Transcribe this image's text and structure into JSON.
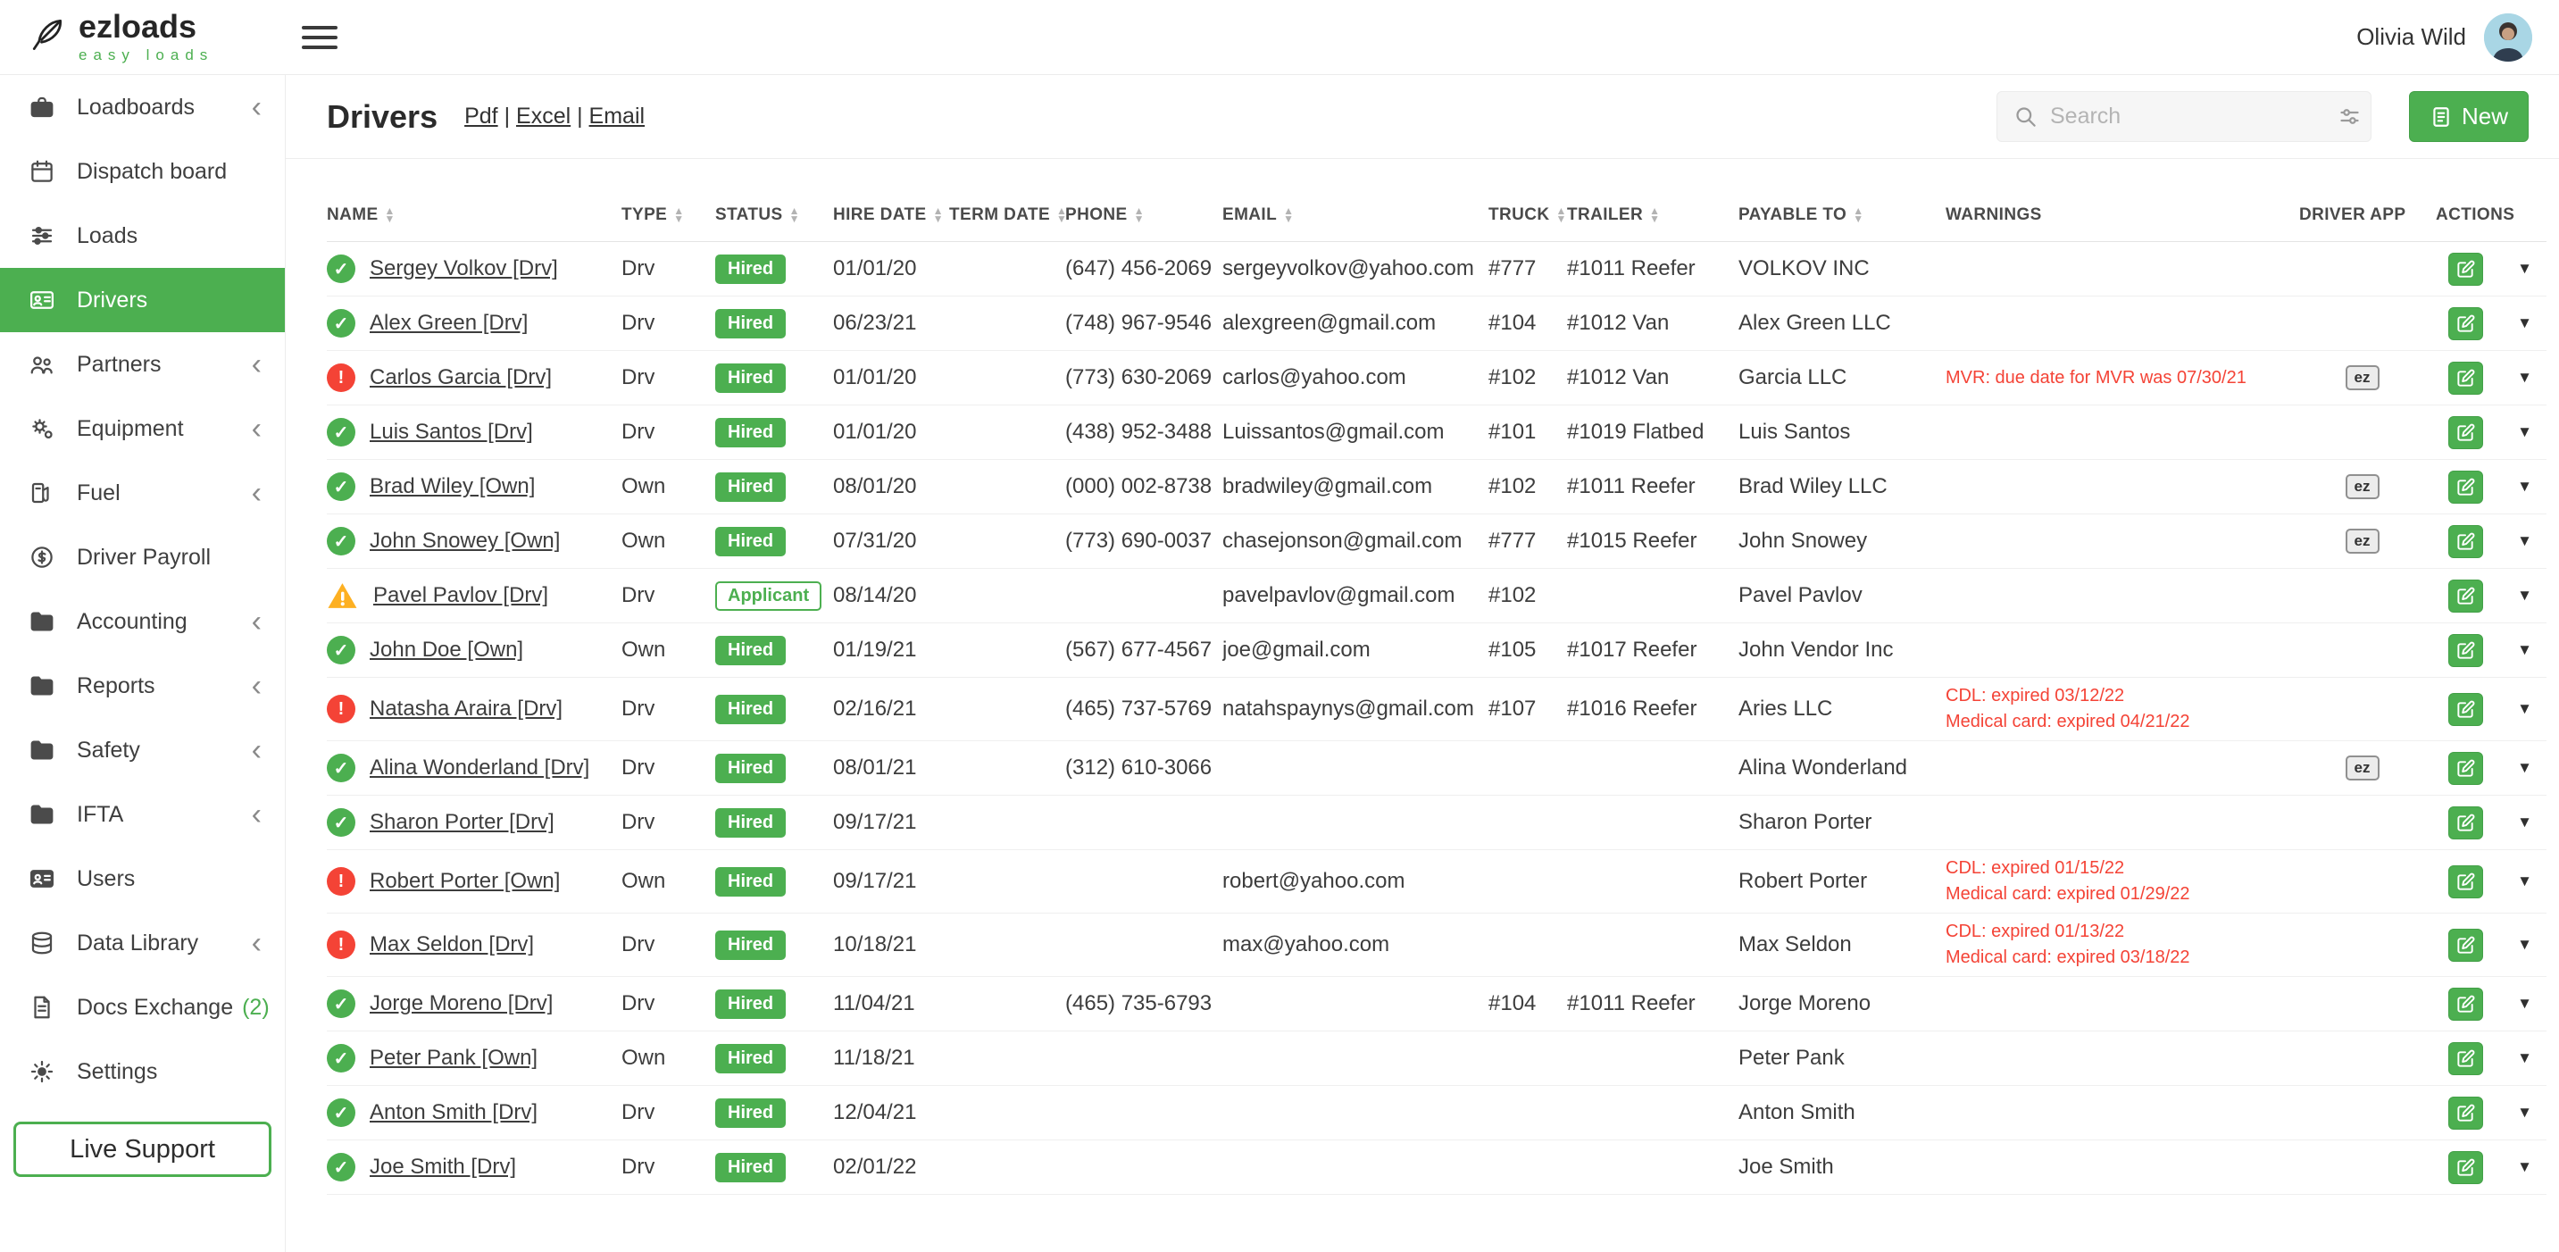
{
  "header": {
    "logo_title": "ezloads",
    "logo_subtitle": "easy loads",
    "user_name": "Olivia Wild"
  },
  "sidebar": {
    "items": [
      {
        "label": "Loadboards",
        "icon": "loadboards",
        "expandable": true
      },
      {
        "label": "Dispatch board",
        "icon": "calendar",
        "expandable": false
      },
      {
        "label": "Loads",
        "icon": "loads",
        "expandable": false
      },
      {
        "label": "Drivers",
        "icon": "drivers",
        "expandable": false,
        "active": true
      },
      {
        "label": "Partners",
        "icon": "partners",
        "expandable": true
      },
      {
        "label": "Equipment",
        "icon": "equipment",
        "expandable": true
      },
      {
        "label": "Fuel",
        "icon": "fuel",
        "expandable": true
      },
      {
        "label": "Driver Payroll",
        "icon": "payroll",
        "expandable": false
      },
      {
        "label": "Accounting",
        "icon": "folder",
        "expandable": true
      },
      {
        "label": "Reports",
        "icon": "folder",
        "expandable": true
      },
      {
        "label": "Safety",
        "icon": "folder",
        "expandable": true
      },
      {
        "label": "IFTA",
        "icon": "folder",
        "expandable": true
      },
      {
        "label": "Users",
        "icon": "users",
        "expandable": false
      },
      {
        "label": "Data Library",
        "icon": "database",
        "expandable": true
      },
      {
        "label": "Docs Exchange",
        "icon": "docs",
        "expandable": false,
        "badge": "(2)"
      },
      {
        "label": "Settings",
        "icon": "settings",
        "expandable": false
      }
    ],
    "live_support": "Live Support"
  },
  "page": {
    "title": "Drivers",
    "export_links": [
      "Pdf",
      "Excel",
      "Email"
    ],
    "search_placeholder": "Search",
    "new_button": "New"
  },
  "table": {
    "driver_app_label": "ez",
    "columns": [
      {
        "label": "NAME",
        "sortable": true
      },
      {
        "label": "TYPE",
        "sortable": true
      },
      {
        "label": "STATUS",
        "sortable": true
      },
      {
        "label": "HIRE DATE",
        "sortable": true
      },
      {
        "label": "TERM DATE",
        "sortable": true
      },
      {
        "label": "PHONE",
        "sortable": true
      },
      {
        "label": "EMAIL",
        "sortable": true
      },
      {
        "label": "TRUCK",
        "sortable": true
      },
      {
        "label": "TRAILER",
        "sortable": true
      },
      {
        "label": "PAYABLE TO",
        "sortable": true
      },
      {
        "label": "WARNINGS",
        "sortable": false
      },
      {
        "label": "DRIVER APP",
        "sortable": false
      },
      {
        "label": "ACTIONS",
        "sortable": false
      }
    ],
    "rows": [
      {
        "indicator": "ok",
        "name": "Sergey Volkov [Drv]",
        "type": "Drv",
        "status": "Hired",
        "hire_date": "01/01/20",
        "term_date": "",
        "phone": "(647) 456-2069",
        "email": "sergeyvolkov@yahoo.com",
        "truck": "#777",
        "trailer": "#1011 Reefer",
        "payable_to": "VOLKOV INC",
        "warnings": [],
        "driver_app": false
      },
      {
        "indicator": "ok",
        "name": "Alex Green [Drv]",
        "type": "Drv",
        "status": "Hired",
        "hire_date": "06/23/21",
        "term_date": "",
        "phone": "(748) 967-9546",
        "email": "alexgreen@gmail.com",
        "truck": "#104",
        "trailer": "#1012 Van",
        "payable_to": "Alex Green LLC",
        "warnings": [],
        "driver_app": false
      },
      {
        "indicator": "error",
        "name": "Carlos Garcia [Drv]",
        "type": "Drv",
        "status": "Hired",
        "hire_date": "01/01/20",
        "term_date": "",
        "phone": "(773) 630-2069",
        "email": "carlos@yahoo.com",
        "truck": "#102",
        "trailer": "#1012 Van",
        "payable_to": "Garcia LLC",
        "warnings": [
          "MVR: due date for MVR was 07/30/21"
        ],
        "driver_app": true
      },
      {
        "indicator": "ok",
        "name": "Luis Santos [Drv]",
        "type": "Drv",
        "status": "Hired",
        "hire_date": "01/01/20",
        "term_date": "",
        "phone": "(438) 952-3488",
        "email": "Luissantos@gmail.com",
        "truck": "#101",
        "trailer": "#1019 Flatbed",
        "payable_to": "Luis Santos",
        "warnings": [],
        "driver_app": false
      },
      {
        "indicator": "ok",
        "name": "Brad Wiley [Own]",
        "type": "Own",
        "status": "Hired",
        "hire_date": "08/01/20",
        "term_date": "",
        "phone": "(000) 002-8738",
        "email": "bradwiley@gmail.com",
        "truck": "#102",
        "trailer": "#1011 Reefer",
        "payable_to": "Brad Wiley LLC",
        "warnings": [],
        "driver_app": true
      },
      {
        "indicator": "ok",
        "name": "John Snowey [Own]",
        "type": "Own",
        "status": "Hired",
        "hire_date": "07/31/20",
        "term_date": "",
        "phone": "(773) 690-0037",
        "email": "chasejonson@gmail.com",
        "truck": "#777",
        "trailer": "#1015 Reefer",
        "payable_to": "John Snowey",
        "warnings": [],
        "driver_app": true
      },
      {
        "indicator": "warning",
        "name": "Pavel Pavlov [Drv]",
        "type": "Drv",
        "status": "Applicant",
        "hire_date": "08/14/20",
        "term_date": "",
        "phone": "",
        "email": "pavelpavlov@gmail.com",
        "truck": "#102",
        "trailer": "",
        "payable_to": "Pavel Pavlov",
        "warnings": [],
        "driver_app": false
      },
      {
        "indicator": "ok",
        "name": "John Doe [Own]",
        "type": "Own",
        "status": "Hired",
        "hire_date": "01/19/21",
        "term_date": "",
        "phone": "(567) 677-4567",
        "email": "joe@gmail.com",
        "truck": "#105",
        "trailer": "#1017 Reefer",
        "payable_to": "John Vendor Inc",
        "warnings": [],
        "driver_app": false
      },
      {
        "indicator": "error",
        "name": "Natasha Araira [Drv]",
        "type": "Drv",
        "status": "Hired",
        "hire_date": "02/16/21",
        "term_date": "",
        "phone": "(465) 737-5769",
        "email": "natahspaynys@gmail.com",
        "truck": "#107",
        "trailer": "#1016 Reefer",
        "payable_to": "Aries LLC",
        "warnings": [
          "CDL: expired 03/12/22",
          "Medical card: expired 04/21/22"
        ],
        "driver_app": false
      },
      {
        "indicator": "ok",
        "name": "Alina Wonderland [Drv]",
        "type": "Drv",
        "status": "Hired",
        "hire_date": "08/01/21",
        "term_date": "",
        "phone": "(312) 610-3066",
        "email": "",
        "truck": "",
        "trailer": "",
        "payable_to": "Alina Wonderland",
        "warnings": [],
        "driver_app": true
      },
      {
        "indicator": "ok",
        "name": "Sharon Porter [Drv]",
        "type": "Drv",
        "status": "Hired",
        "hire_date": "09/17/21",
        "term_date": "",
        "phone": "",
        "email": "",
        "truck": "",
        "trailer": "",
        "payable_to": "Sharon Porter",
        "warnings": [],
        "driver_app": false
      },
      {
        "indicator": "error",
        "name": "Robert Porter [Own]",
        "type": "Own",
        "status": "Hired",
        "hire_date": "09/17/21",
        "term_date": "",
        "phone": "",
        "email": "robert@yahoo.com",
        "truck": "",
        "trailer": "",
        "payable_to": "Robert Porter",
        "warnings": [
          "CDL: expired 01/15/22",
          "Medical card: expired 01/29/22"
        ],
        "driver_app": false
      },
      {
        "indicator": "error",
        "name": "Max Seldon [Drv]",
        "type": "Drv",
        "status": "Hired",
        "hire_date": "10/18/21",
        "term_date": "",
        "phone": "",
        "email": "max@yahoo.com",
        "truck": "",
        "trailer": "",
        "payable_to": "Max Seldon",
        "warnings": [
          "CDL: expired 01/13/22",
          "Medical card: expired 03/18/22"
        ],
        "driver_app": false
      },
      {
        "indicator": "ok",
        "name": "Jorge Moreno [Drv]",
        "type": "Drv",
        "status": "Hired",
        "hire_date": "11/04/21",
        "term_date": "",
        "phone": "(465) 735-6793",
        "email": "",
        "truck": "#104",
        "trailer": "#1011 Reefer",
        "payable_to": "Jorge Moreno",
        "warnings": [],
        "driver_app": false
      },
      {
        "indicator": "ok",
        "name": "Peter Pank [Own]",
        "type": "Own",
        "status": "Hired",
        "hire_date": "11/18/21",
        "term_date": "",
        "phone": "",
        "email": "",
        "truck": "",
        "trailer": "",
        "payable_to": "Peter Pank",
        "warnings": [],
        "driver_app": false
      },
      {
        "indicator": "ok",
        "name": "Anton Smith [Drv]",
        "type": "Drv",
        "status": "Hired",
        "hire_date": "12/04/21",
        "term_date": "",
        "phone": "",
        "email": "",
        "truck": "",
        "trailer": "",
        "payable_to": "Anton Smith",
        "warnings": [],
        "driver_app": false
      },
      {
        "indicator": "ok",
        "name": "Joe Smith [Drv]",
        "type": "Drv",
        "status": "Hired",
        "hire_date": "02/01/22",
        "term_date": "",
        "phone": "",
        "email": "",
        "truck": "",
        "trailer": "",
        "payable_to": "Joe Smith",
        "warnings": [],
        "driver_app": false
      }
    ]
  }
}
